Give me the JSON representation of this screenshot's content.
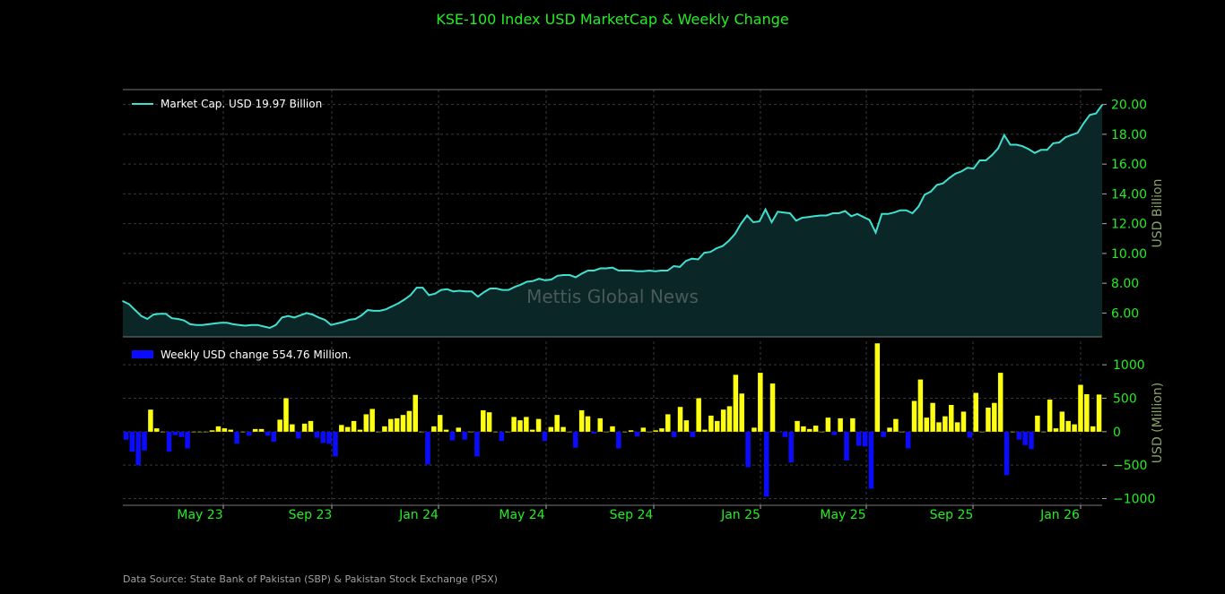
{
  "title": "KSE-100 Index USD MarketCap & Weekly Change",
  "watermark": "Mettis Global News",
  "source": "Data Source: State Bank of Pakistan (SBP) & Pakistan Stock Exchange (PSX)",
  "colors": {
    "title": "#22ee22",
    "line": "#40e0d0",
    "area": "#0b2626",
    "pos_bar": "#ffff11",
    "neg_bar": "#0b0bff",
    "tick": "#22ee22"
  },
  "chart_data": [
    {
      "type": "area",
      "legend": "Market Cap. USD 19.97 Billion",
      "ylabel": "USD Billion",
      "xlabel": "",
      "ylim": [
        4.4,
        21.0
      ],
      "yticks": [
        6,
        8,
        10,
        12,
        14,
        16,
        18,
        20
      ],
      "ytick_labels": [
        "6.00",
        "8.00",
        "10.00",
        "12.00",
        "14.00",
        "16.00",
        "18.00",
        "20.00"
      ],
      "grid": true,
      "legend_position": "top-left",
      "axis_side": "right",
      "series": [
        {
          "values": [
            6.8,
            6.6,
            6.2,
            5.8,
            5.6,
            5.9,
            5.95,
            5.95,
            5.65,
            5.6,
            5.5,
            5.25,
            5.2,
            5.2,
            5.25,
            5.3,
            5.35,
            5.35,
            5.25,
            5.2,
            5.15,
            5.2,
            5.2,
            5.1,
            5.0,
            5.2,
            5.7,
            5.8,
            5.7,
            5.85,
            6.0,
            5.9,
            5.7,
            5.55,
            5.2,
            5.3,
            5.4,
            5.55,
            5.6,
            5.85,
            6.2,
            6.15,
            6.15,
            6.25,
            6.45,
            6.65,
            6.9,
            7.2,
            7.7,
            7.7,
            7.2,
            7.3,
            7.55,
            7.6,
            7.45,
            7.5,
            7.45,
            7.45,
            7.1,
            7.4,
            7.65,
            7.65,
            7.55,
            7.55,
            7.75,
            7.9,
            8.1,
            8.15,
            8.3,
            8.2,
            8.25,
            8.5,
            8.55,
            8.55,
            8.4,
            8.65,
            8.85,
            8.85,
            9.0,
            9.0,
            9.05,
            8.85,
            8.85,
            8.85,
            8.8,
            8.8,
            8.85,
            8.8,
            8.85,
            8.85,
            9.15,
            9.1,
            9.5,
            9.65,
            9.6,
            10.05,
            10.1,
            10.35,
            10.5,
            10.85,
            11.3,
            12.0,
            12.55,
            12.1,
            12.15,
            12.95,
            12.1,
            12.8,
            12.75,
            12.7,
            12.2,
            12.4,
            12.45,
            12.5,
            12.55,
            12.55,
            12.7,
            12.7,
            12.85,
            12.5,
            12.65,
            12.45,
            12.25,
            11.4,
            12.65,
            12.65,
            12.75,
            12.9,
            12.9,
            12.7,
            13.15,
            13.95,
            14.15,
            14.6,
            14.7,
            15.05,
            15.35,
            15.5,
            15.75,
            15.7,
            16.25,
            16.25,
            16.6,
            17.05,
            17.95,
            17.3,
            17.3,
            17.2,
            17.0,
            16.75,
            16.95,
            16.95,
            17.4,
            17.45,
            17.8,
            17.95,
            18.1,
            18.75,
            19.3,
            19.4,
            19.97
          ]
        }
      ]
    },
    {
      "type": "bar",
      "legend": "Weekly USD change 554.76 Million.",
      "ylabel": "USD (Million)",
      "xlabel": "",
      "ylim": [
        -1100,
        1350
      ],
      "yticks": [
        -1000,
        -500,
        0,
        500,
        1000
      ],
      "ytick_labels": [
        "−1000",
        "−500",
        "0",
        "500",
        "1000"
      ],
      "grid": true,
      "legend_position": "top-left",
      "axis_side": "right",
      "x_tick_labels": [
        "May 23",
        "Sep 23",
        "Jan 24",
        "May 24",
        "Sep 24",
        "Jan 25",
        "May 25",
        "Sep 25",
        "Jan 26"
      ],
      "series": [
        {
          "values": [
            -120,
            -300,
            -500,
            -280,
            330,
            50,
            0,
            -300,
            -50,
            -80,
            -250,
            0,
            0,
            0,
            20,
            80,
            50,
            30,
            -180,
            0,
            -60,
            40,
            40,
            -60,
            -150,
            180,
            500,
            110,
            -100,
            120,
            160,
            -90,
            -170,
            -180,
            -370,
            100,
            70,
            160,
            30,
            260,
            340,
            0,
            80,
            190,
            200,
            250,
            310,
            550,
            0,
            -490,
            80,
            250,
            30,
            -130,
            60,
            -120,
            0,
            -370,
            320,
            290,
            0,
            -140,
            0,
            220,
            170,
            220,
            30,
            190,
            -140,
            70,
            250,
            70,
            0,
            -240,
            320,
            230,
            -30,
            200,
            0,
            80,
            -250,
            0,
            20,
            -70,
            60,
            0,
            20,
            50,
            260,
            -80,
            370,
            170,
            -80,
            500,
            30,
            240,
            160,
            330,
            380,
            850,
            570,
            -530,
            60,
            880,
            -970,
            720,
            -10,
            -80,
            -460,
            160,
            80,
            40,
            90,
            0,
            210,
            -50,
            200,
            -430,
            200,
            -210,
            -220,
            -850,
            1320,
            -80,
            60,
            190,
            0,
            -250,
            460,
            780,
            210,
            430,
            140,
            230,
            400,
            140,
            300,
            -90,
            580,
            0,
            360,
            430,
            880,
            -650,
            0,
            -120,
            -200,
            -260,
            240,
            0,
            480,
            50,
            300,
            160,
            110,
            700,
            560,
            80,
            555
          ]
        }
      ]
    }
  ]
}
